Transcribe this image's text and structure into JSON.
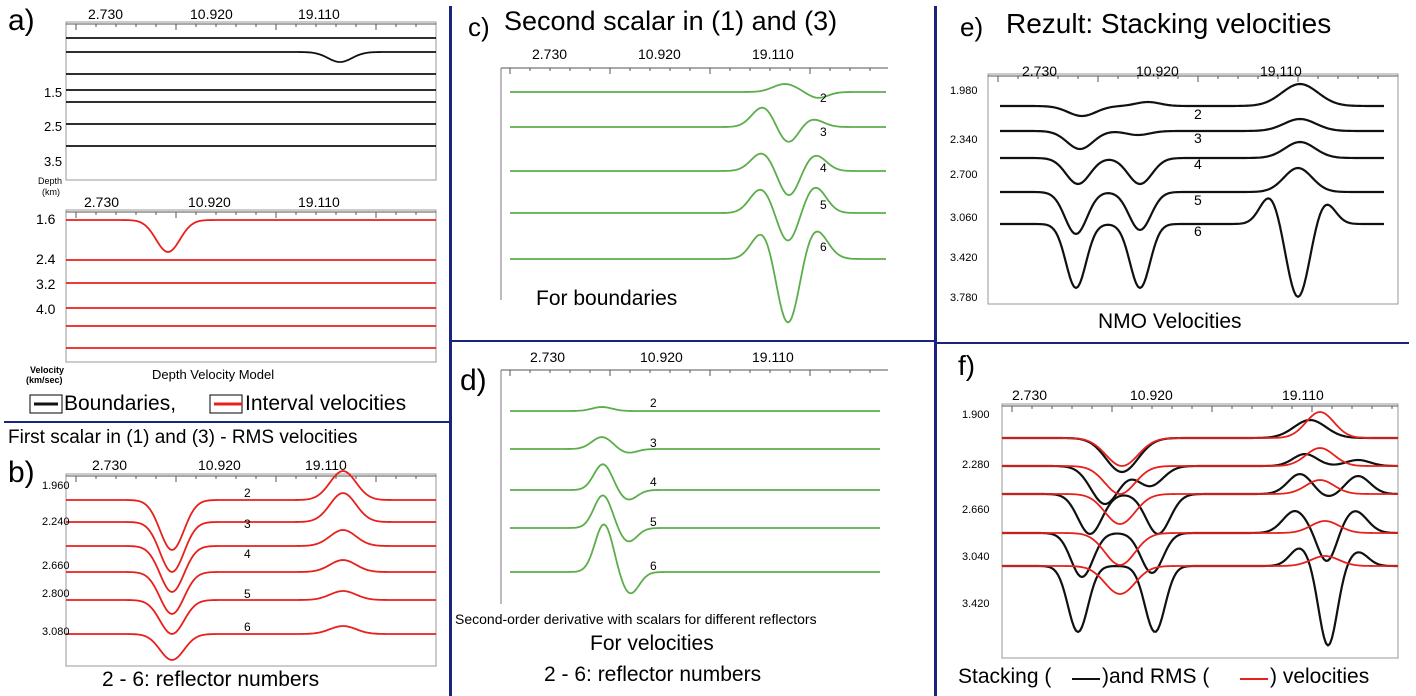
{
  "colors": {
    "black": "#111111",
    "red": "#e8201c",
    "green": "#5cad4b",
    "divider": "#1a237e"
  },
  "x_ticks": [
    "2.730",
    "10.920",
    "19.110"
  ],
  "panel_a": {
    "letter": "a)",
    "depth_ticks": [
      "1.5",
      "2.5",
      "3.5"
    ],
    "depth_axis_label_1": "Depth",
    "depth_axis_label_2": "(km)",
    "velocity_ticks": [
      "1.6",
      "2.4",
      "3.2",
      "4.0"
    ],
    "velocity_axis_label_1": "Velocity",
    "velocity_axis_label_2": "(km/sec)",
    "model_title": "Depth Velocity Model",
    "legend_boundaries": "Boundaries,",
    "legend_interval": "Interval velocities"
  },
  "panel_b": {
    "title": "First scalar in (1) and (3) - RMS velocities",
    "letter": "b)",
    "y_ticks": [
      "1.960",
      "2.240",
      "2.660",
      "2.800",
      "3.080"
    ],
    "curve_labels": [
      "2",
      "3",
      "4",
      "5",
      "6"
    ],
    "caption": "2 - 6: reflector numbers"
  },
  "panel_c": {
    "letter": "c)",
    "title": "Second scalar in (1) and (3)",
    "curve_labels": [
      "2",
      "3",
      "4",
      "5",
      "6"
    ],
    "caption": "For boundaries"
  },
  "panel_d": {
    "letter": "d)",
    "curve_labels": [
      "2",
      "3",
      "4",
      "5",
      "6"
    ],
    "caption_small": "Second-order derivative with scalars for different reflectors",
    "caption": "For velocities",
    "caption2": "2 - 6: reflector numbers"
  },
  "panel_e": {
    "letter": "e)",
    "title": "Rezult: Stacking velocities",
    "y_ticks": [
      "1.980",
      "2.340",
      "2.700",
      "3.060",
      "3.420",
      "3.780"
    ],
    "curve_labels": [
      "2",
      "3",
      "4",
      "5",
      "6"
    ],
    "caption": "NMO Velocities"
  },
  "panel_f": {
    "letter": "f)",
    "y_ticks": [
      "1.900",
      "2.280",
      "2.660",
      "3.040",
      "3.420"
    ],
    "caption_a": "Stacking (",
    "caption_b": ")and RMS (",
    "caption_c": ")  velocities"
  }
}
